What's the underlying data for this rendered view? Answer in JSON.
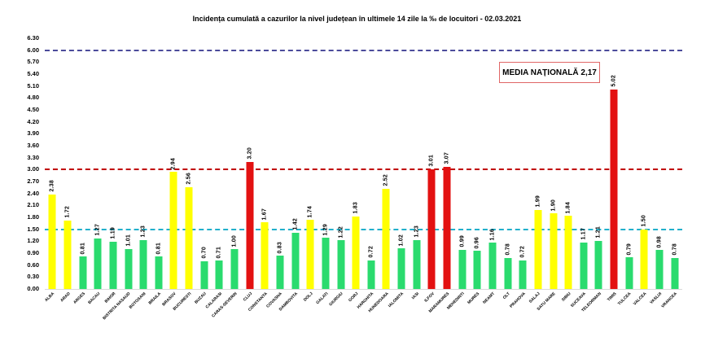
{
  "title": "Incidența cumulată a cazurilor la nivel județean în ultimele 14 zile la ‰ de locuitori - 02.03.2021",
  "annotation": {
    "label": "MEDIA NAȚIONALĂ 2,17"
  },
  "chart_data": {
    "type": "bar",
    "title": "Incidența cumulată a cazurilor la nivel județean în ultimele 14 zile la ‰ de locuitori - 02.03.2021",
    "categories": [
      "ALBA",
      "ARAD",
      "ARGES",
      "BACAU",
      "BIHOR",
      "BISTRITA NASAUD",
      "BOTOSANI",
      "BRAILA",
      "BRASOV",
      "BUCURESTI",
      "BUZAU",
      "CALARASI",
      "CARAS-SEVERIN",
      "CLUJ",
      "CONSTANTA",
      "COVASNA",
      "DAMBOVITA",
      "DOLJ",
      "GALATI",
      "GIURGIU",
      "GORJ",
      "HARGHITA",
      "HUNEDOARA",
      "IALOMITA",
      "IASI",
      "ILFOV",
      "MARAMURES",
      "MEHEDINTI",
      "MURES",
      "NEAMT",
      "OLT",
      "PRAHOVA",
      "SALAJ",
      "SATU MARE",
      "SIBIU",
      "SUCEAVA",
      "TELEORMAN",
      "TIMIS",
      "TULCEA",
      "VALCEA",
      "VASLUI",
      "VRANCEA"
    ],
    "values": [
      2.38,
      1.72,
      0.81,
      1.27,
      1.19,
      1.01,
      1.23,
      0.81,
      2.94,
      2.56,
      0.7,
      0.71,
      1.0,
      3.2,
      1.67,
      0.83,
      1.42,
      1.74,
      1.29,
      1.22,
      1.83,
      0.72,
      2.52,
      1.02,
      1.23,
      3.01,
      3.07,
      0.99,
      0.96,
      1.16,
      0.78,
      0.72,
      1.99,
      1.9,
      1.84,
      1.17,
      1.21,
      5.02,
      0.79,
      1.5,
      0.98,
      0.78
    ],
    "xlabel": "",
    "ylabel": "",
    "ylim": [
      0,
      6.3
    ],
    "ytick_step": 0.3,
    "grid": false,
    "legend": "none",
    "national_average": "2,17",
    "color_rules": {
      "red_min": 3.0,
      "yellow_min": 1.5
    },
    "palette": {
      "green": "#2adb6e",
      "yellow": "#ffff00",
      "red": "#e31111"
    },
    "reference_lines": [
      {
        "value": 6.0,
        "color": "#4b4b9b",
        "style": "dashed"
      },
      {
        "value": 3.0,
        "color": "#c00000",
        "style": "dashed"
      },
      {
        "value": 1.5,
        "color": "#21afcb",
        "style": "dashed"
      }
    ]
  }
}
